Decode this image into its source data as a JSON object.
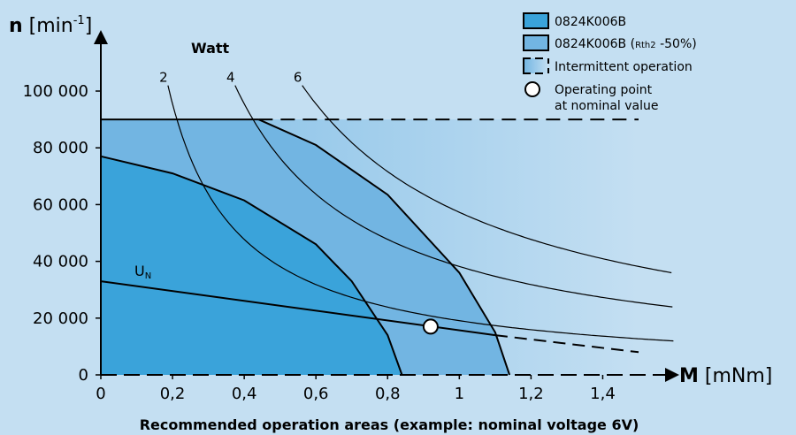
{
  "chart_data": {
    "type": "area",
    "title": "Recommended operation areas (example: nominal voltage 6V)",
    "y_axis": {
      "symbol": "n",
      "unit_pre": " [min",
      "unit_sup": "-1",
      "unit_post": "]",
      "ylim": [
        0,
        100000
      ]
    },
    "x_axis": {
      "symbol": "M",
      "unit": " [mNm]",
      "xlim": [
        0,
        1.5
      ]
    },
    "xticks": [
      0,
      0.2,
      0.4,
      0.6,
      0.8,
      1,
      1.2,
      1.4
    ],
    "xtick_labels": [
      "0",
      "0,2",
      "0,4",
      "0,6",
      "0,8",
      "1",
      "1,2",
      "1,4"
    ],
    "yticks": [
      0,
      20000,
      40000,
      60000,
      80000,
      100000
    ],
    "ytick_labels": [
      "0",
      "20 000",
      "40 000",
      "60 000",
      "80 000",
      "100 000"
    ],
    "speed_limit": 90000,
    "continuous_area": {
      "name": "0824K006B",
      "boundary": [
        [
          0,
          77000
        ],
        [
          0.2,
          71000
        ],
        [
          0.4,
          61500
        ],
        [
          0.6,
          46000
        ],
        [
          0.7,
          33000
        ],
        [
          0.8,
          14000
        ],
        [
          0.84,
          0
        ]
      ]
    },
    "reduced_thermal_area": {
      "name": "0824K006B (Rth2 -50%)",
      "boundary": [
        [
          0.44,
          90000
        ],
        [
          0.6,
          81000
        ],
        [
          0.8,
          63500
        ],
        [
          1.0,
          36000
        ],
        [
          1.1,
          15000
        ],
        [
          1.14,
          0
        ]
      ]
    },
    "nominal_voltage_line": {
      "label": "U",
      "label_sub": "N",
      "solid": [
        [
          0,
          33000
        ],
        [
          1.1,
          14000
        ]
      ],
      "dashed": [
        [
          1.1,
          14000
        ],
        [
          1.5,
          8000
        ]
      ]
    },
    "power_hyperbolas": [
      {
        "label": "2",
        "watt": 2
      },
      {
        "label": "4",
        "watt": 4
      },
      {
        "label": "6",
        "watt": 6
      }
    ],
    "watt_label": "Watt",
    "operating_point": {
      "x": 0.92,
      "y": 17000
    },
    "legend": [
      {
        "label": "0824K006B",
        "color": "#3aa3da"
      },
      {
        "label_main": "0824K006B (",
        "label_sub": "Rth2",
        "label_tail": " -50%)",
        "color": "#72b5e2"
      },
      {
        "label": "Intermittent operation"
      },
      {
        "label_line1": "Operating point",
        "label_line2": "at nominal value"
      }
    ],
    "colors": {
      "background": "#c4dff2",
      "continuous": "#3aa3da",
      "reduced": "#72b5e2",
      "intermittent_start": "#7fbde6",
      "intermittent_end": "#c4dff2"
    }
  }
}
